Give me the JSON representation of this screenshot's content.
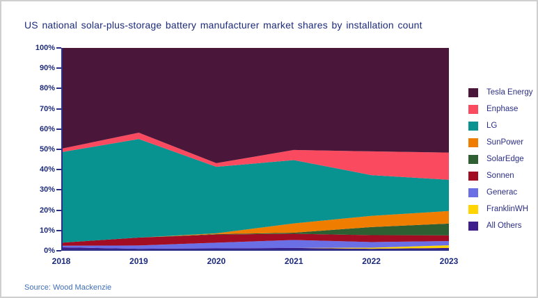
{
  "title": "US national solar-plus-storage battery manufacturer market shares by installation count",
  "source_note": "Source: Wood Mackenzie",
  "colors": {
    "text_navy": "#1c2a7c",
    "axis_line": "#2c2f87",
    "source_text": "#3e6eb5",
    "canvas_border": "#cfcfcf",
    "background": "#ffffff"
  },
  "chart_data": {
    "type": "area",
    "stacked": true,
    "title": "US national solar-plus-storage battery manufacturer market shares by installation count",
    "x": [
      "2018",
      "2019",
      "2020",
      "2021",
      "2022",
      "2023"
    ],
    "y_ticks": [
      "0%",
      "10%",
      "20%",
      "30%",
      "40%",
      "50%",
      "60%",
      "70%",
      "80%",
      "90%",
      "100%"
    ],
    "ylim": [
      0,
      100
    ],
    "y_unit": "percent",
    "grid": false,
    "legend_position": "right",
    "series": [
      {
        "name": "Tesla Energy",
        "color": "#4a1639",
        "values": [
          49.7,
          41.8,
          56.8,
          50.3,
          51.0,
          51.6
        ]
      },
      {
        "name": "Enphase",
        "color": "#f94a5f",
        "values": [
          1.7,
          3.1,
          1.8,
          5.0,
          11.7,
          13.4
        ]
      },
      {
        "name": "LG",
        "color": "#089390",
        "values": [
          44.6,
          48.6,
          32.8,
          31.2,
          20.1,
          15.4
        ]
      },
      {
        "name": "SunPower",
        "color": "#ef7d00",
        "values": [
          0.0,
          0.0,
          0.4,
          4.6,
          5.5,
          6.2
        ]
      },
      {
        "name": "SolarEdge",
        "color": "#2d5f32",
        "values": [
          0.0,
          0.0,
          0.2,
          0.5,
          4.0,
          5.8
        ]
      },
      {
        "name": "Sonnen",
        "color": "#a30d23",
        "values": [
          1.5,
          3.9,
          4.0,
          3.1,
          3.4,
          2.8
        ]
      },
      {
        "name": "Generac",
        "color": "#6a6fe6",
        "values": [
          0.8,
          1.6,
          2.8,
          3.9,
          2.8,
          2.1
        ]
      },
      {
        "name": "FranklinWH",
        "color": "#ffd400",
        "values": [
          0.0,
          0.0,
          0.0,
          0.0,
          0.5,
          1.3
        ]
      },
      {
        "name": "All Others",
        "color": "#3f1f8c",
        "values": [
          1.7,
          1.0,
          1.2,
          1.4,
          1.0,
          1.4
        ]
      }
    ]
  }
}
